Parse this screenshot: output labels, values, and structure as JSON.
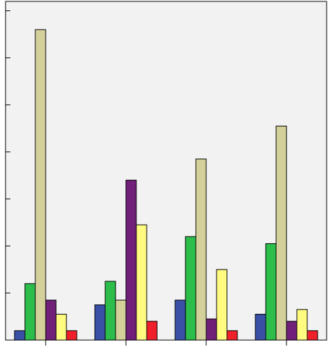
{
  "chart_data": {
    "type": "bar",
    "title": "",
    "xlabel": "",
    "ylabel": "",
    "categories": [
      "",
      "",
      "",
      ""
    ],
    "ylim": [
      0,
      7.2
    ],
    "yticks": [
      1,
      2,
      3,
      4,
      5,
      6,
      7
    ],
    "grid": false,
    "legend": "none",
    "series": [
      {
        "color": "#3a50a6",
        "values": [
          0.2,
          0.75,
          0.85,
          0.55
        ]
      },
      {
        "color": "#2dbd4a",
        "values": [
          1.2,
          1.25,
          2.2,
          2.05
        ]
      },
      {
        "color": "#d4d09a",
        "values": [
          6.6,
          0.85,
          3.85,
          4.55
        ]
      },
      {
        "color": "#71207a",
        "values": [
          0.85,
          3.4,
          0.45,
          0.4
        ]
      },
      {
        "color": "#fffa80",
        "values": [
          0.55,
          2.45,
          1.5,
          0.65
        ]
      },
      {
        "color": "#f0202a",
        "values": [
          0.2,
          0.4,
          0.2,
          0.2
        ]
      }
    ]
  }
}
